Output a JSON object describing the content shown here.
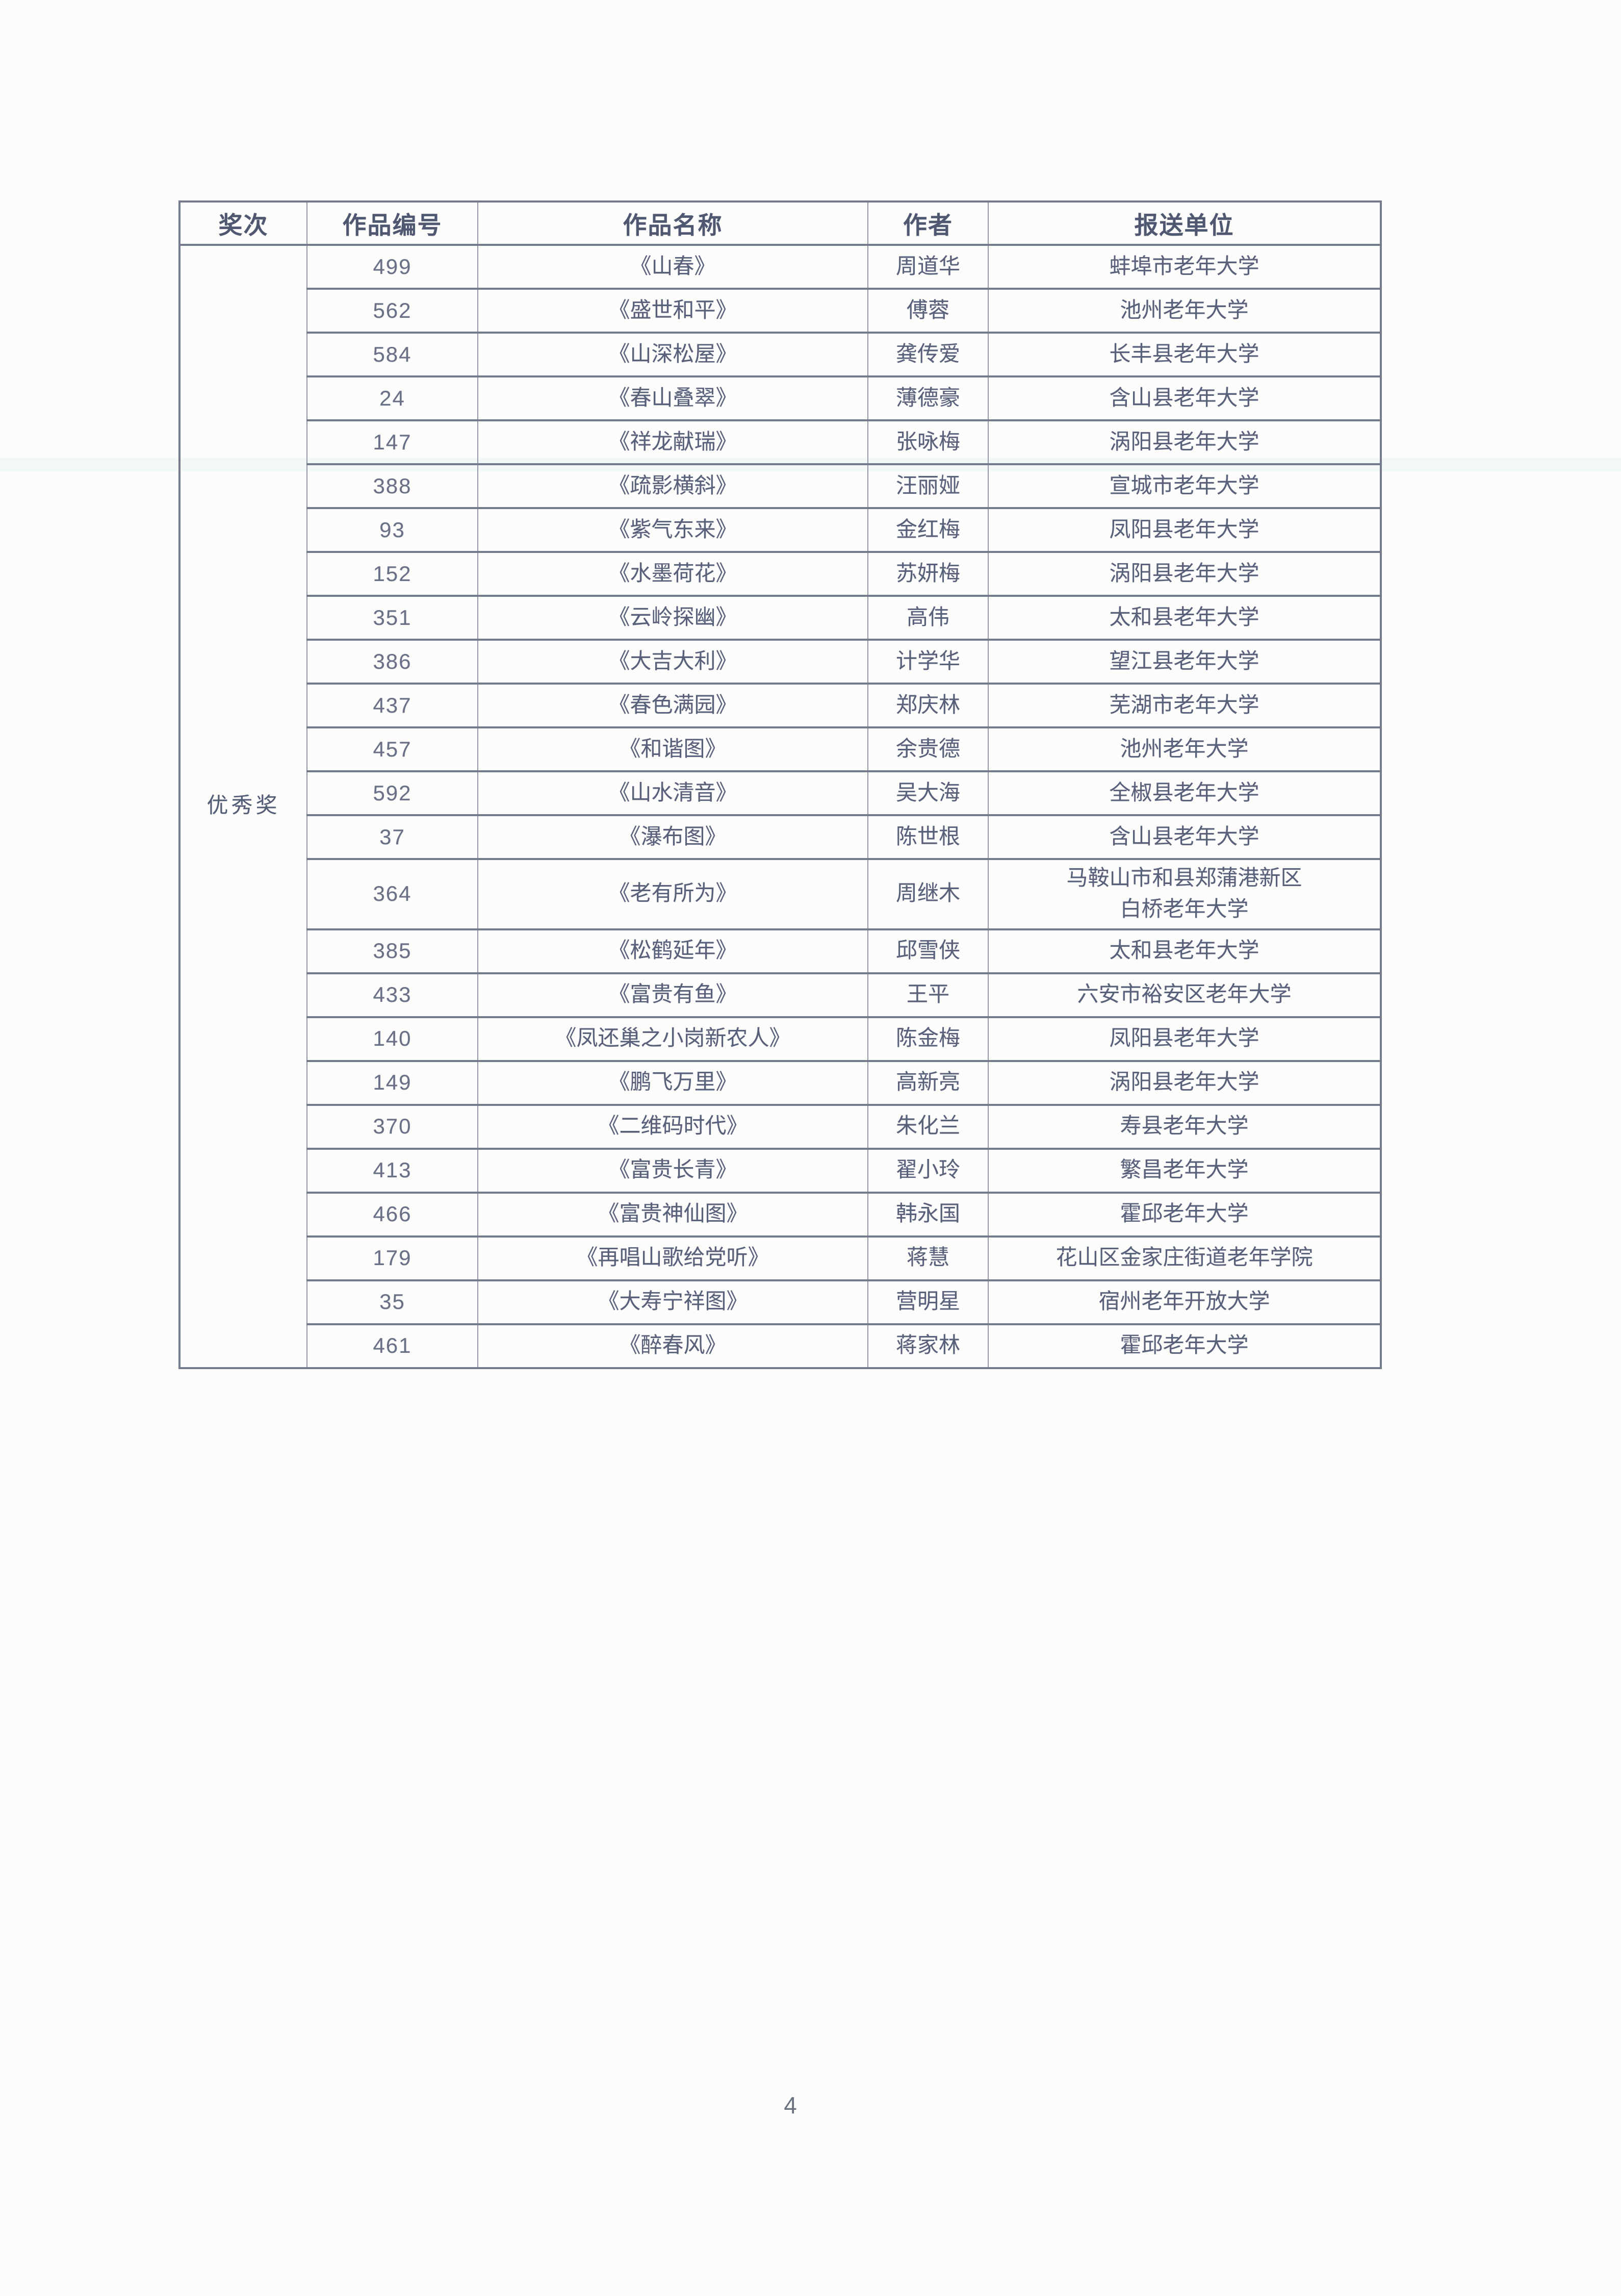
{
  "page": {
    "number": "4"
  },
  "award": {
    "label": "优秀奖"
  },
  "table": {
    "headers": [
      "奖次",
      "作品编号",
      "作品名称",
      "作者",
      "报送单位"
    ],
    "rows": [
      {
        "id": "499",
        "title": "《山春》",
        "author": "周道华",
        "org": "蚌埠市老年大学"
      },
      {
        "id": "562",
        "title": "《盛世和平》",
        "author": "傅蓉",
        "org": "池州老年大学"
      },
      {
        "id": "584",
        "title": "《山深松屋》",
        "author": "龚传爱",
        "org": "长丰县老年大学"
      },
      {
        "id": "24",
        "title": "《春山叠翠》",
        "author": "薄德豪",
        "org": "含山县老年大学"
      },
      {
        "id": "147",
        "title": "《祥龙献瑞》",
        "author": "张咏梅",
        "org": "涡阳县老年大学"
      },
      {
        "id": "388",
        "title": "《疏影横斜》",
        "author": "汪丽娅",
        "org": "宣城市老年大学"
      },
      {
        "id": "93",
        "title": "《紫气东来》",
        "author": "金红梅",
        "org": "凤阳县老年大学"
      },
      {
        "id": "152",
        "title": "《水墨荷花》",
        "author": "苏妍梅",
        "org": "涡阳县老年大学"
      },
      {
        "id": "351",
        "title": "《云岭探幽》",
        "author": "高伟",
        "org": "太和县老年大学"
      },
      {
        "id": "386",
        "title": "《大吉大利》",
        "author": "计学华",
        "org": "望江县老年大学"
      },
      {
        "id": "437",
        "title": "《春色满园》",
        "author": "郑庆林",
        "org": "芜湖市老年大学"
      },
      {
        "id": "457",
        "title": "《和谐图》",
        "author": "余贵德",
        "org": "池州老年大学"
      },
      {
        "id": "592",
        "title": "《山水清音》",
        "author": "吴大海",
        "org": "全椒县老年大学"
      },
      {
        "id": "37",
        "title": "《瀑布图》",
        "author": "陈世根",
        "org": "含山县老年大学"
      },
      {
        "id": "364",
        "title": "《老有所为》",
        "author": "周继木",
        "org": "马鞍山市和县郑蒲港新区\n白桥老年大学"
      },
      {
        "id": "385",
        "title": "《松鹤延年》",
        "author": "邱雪侠",
        "org": "太和县老年大学"
      },
      {
        "id": "433",
        "title": "《富贵有鱼》",
        "author": "王平",
        "org": "六安市裕安区老年大学"
      },
      {
        "id": "140",
        "title": "《凤还巢之小岗新农人》",
        "author": "陈金梅",
        "org": "凤阳县老年大学"
      },
      {
        "id": "149",
        "title": "《鹏飞万里》",
        "author": "高新亮",
        "org": "涡阳县老年大学"
      },
      {
        "id": "370",
        "title": "《二维码时代》",
        "author": "朱化兰",
        "org": "寿县老年大学"
      },
      {
        "id": "413",
        "title": "《富贵长青》",
        "author": "翟小玲",
        "org": "繁昌老年大学"
      },
      {
        "id": "466",
        "title": "《富贵神仙图》",
        "author": "韩永国",
        "org": "霍邱老年大学"
      },
      {
        "id": "179",
        "title": "《再唱山歌给党听》",
        "author": "蒋慧",
        "org": "花山区金家庄街道老年学院"
      },
      {
        "id": "35",
        "title": "《大寿宁祥图》",
        "author": "营明星",
        "org": "宿州老年开放大学"
      },
      {
        "id": "461",
        "title": "《醉春风》",
        "author": "蒋家林",
        "org": "霍邱老年大学"
      }
    ]
  }
}
